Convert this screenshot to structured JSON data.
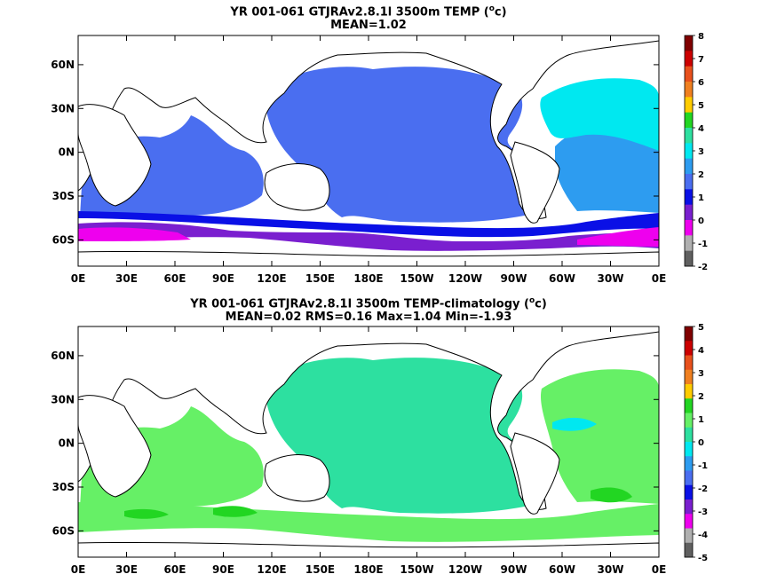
{
  "colors": {
    "deep_purple": "#7a1fcf",
    "magenta": "#ee00ee",
    "blue": "#0a10e6",
    "royal_blue": "#4a6ef0",
    "sky_blue": "#2d9cf0",
    "cyan": "#00e8f0",
    "aqua_green": "#2de0a0",
    "light_green": "#66f066",
    "green": "#22d622",
    "land": "#ffffff",
    "coast": "#000000"
  },
  "panels": [
    {
      "title_line1_a": "YR 001-061 GTJRAv2.8.1l 3500m TEMP (",
      "title_line1_sup": "o",
      "title_line1_b": "c)",
      "title_line2": "MEAN=1.02",
      "x_ticks": [
        "0E",
        "30E",
        "60E",
        "90E",
        "120E",
        "150E",
        "180E",
        "150W",
        "120W",
        "90W",
        "60W",
        "30W",
        "0E"
      ],
      "y_ticks": [
        "60N",
        "30N",
        "0N",
        "30S",
        "60S"
      ],
      "colorbar_labels": [
        "8",
        "7",
        "6",
        "5",
        "4",
        "3",
        "2",
        "1",
        "0",
        "-1",
        "-2"
      ],
      "colorbar_colors": [
        "#800000",
        "#cc0000",
        "#e8501c",
        "#f08020",
        "#ffcc00",
        "#22d622",
        "#2de0a0",
        "#00e8f0",
        "#2d9cf0",
        "#4a6ef0",
        "#0a10e6",
        "#7a1fcf",
        "#ee00ee",
        "#b0b0b0",
        "#606060"
      ]
    },
    {
      "title_line1_a": "YR 001-061 GTJRAv2.8.1l 3500m TEMP-climatology (",
      "title_line1_sup": "o",
      "title_line1_b": "c)",
      "title_line2": "MEAN=0.02   RMS=0.16   Max=1.04   Min=-1.93",
      "x_ticks": [
        "0E",
        "30E",
        "60E",
        "90E",
        "120E",
        "150E",
        "180E",
        "150W",
        "120W",
        "90W",
        "60W",
        "30W",
        "0E"
      ],
      "y_ticks": [
        "60N",
        "30N",
        "0N",
        "30S",
        "60S"
      ],
      "colorbar_labels": [
        "5",
        "4",
        "3",
        "2",
        "1",
        "0",
        "-1",
        "-2",
        "-3",
        "-4",
        "-5"
      ],
      "colorbar_colors": [
        "#800000",
        "#cc0000",
        "#e8501c",
        "#f08020",
        "#ffcc00",
        "#22d622",
        "#66f066",
        "#2de0a0",
        "#00e8f0",
        "#2d9cf0",
        "#4a6ef0",
        "#0a10e6",
        "#7a1fcf",
        "#ee00ee",
        "#b0b0b0",
        "#606060"
      ]
    }
  ]
}
